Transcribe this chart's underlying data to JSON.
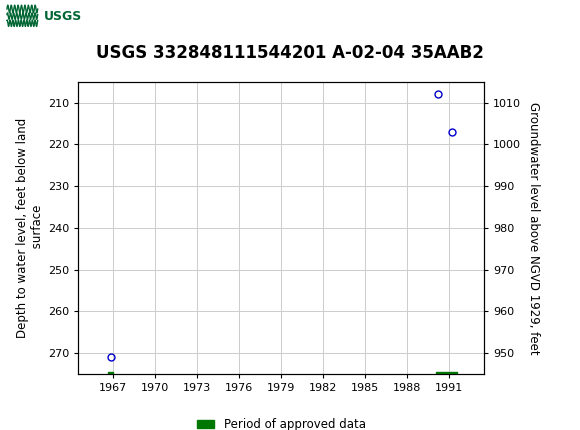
{
  "title": "USGS 332848111544201 A-02-04 35AAB2",
  "ylabel_left": "Depth to water level, feet below land\n surface",
  "ylabel_right": "Groundwater level above NGVD 1929, feet",
  "header_color": "#006633",
  "plot_bg": "#ffffff",
  "grid_color": "#cccccc",
  "data_points": [
    {
      "x": 1966.8,
      "y_depth": 271.0
    },
    {
      "x": 1990.2,
      "y_depth": 208.0
    },
    {
      "x": 1991.2,
      "y_depth": 217.0
    }
  ],
  "approved_bars": [
    {
      "x_start": 1966.6,
      "x_end": 1966.95
    },
    {
      "x_start": 1990.05,
      "x_end": 1991.55
    }
  ],
  "ylim_left": [
    275,
    205
  ],
  "ylim_right": [
    945,
    1015
  ],
  "xlim": [
    1964.5,
    1993.5
  ],
  "xticks": [
    1967,
    1970,
    1973,
    1976,
    1979,
    1982,
    1985,
    1988,
    1991
  ],
  "yticks_left": [
    210,
    220,
    230,
    240,
    250,
    260,
    270
  ],
  "yticks_right": [
    950,
    960,
    970,
    980,
    990,
    1000,
    1010
  ],
  "marker_color": "#0000cc",
  "marker_size": 5,
  "approved_color": "#007700",
  "font_color": "#000000",
  "title_fontsize": 12,
  "axis_label_fontsize": 8.5,
  "tick_fontsize": 8,
  "legend_fontsize": 8.5
}
